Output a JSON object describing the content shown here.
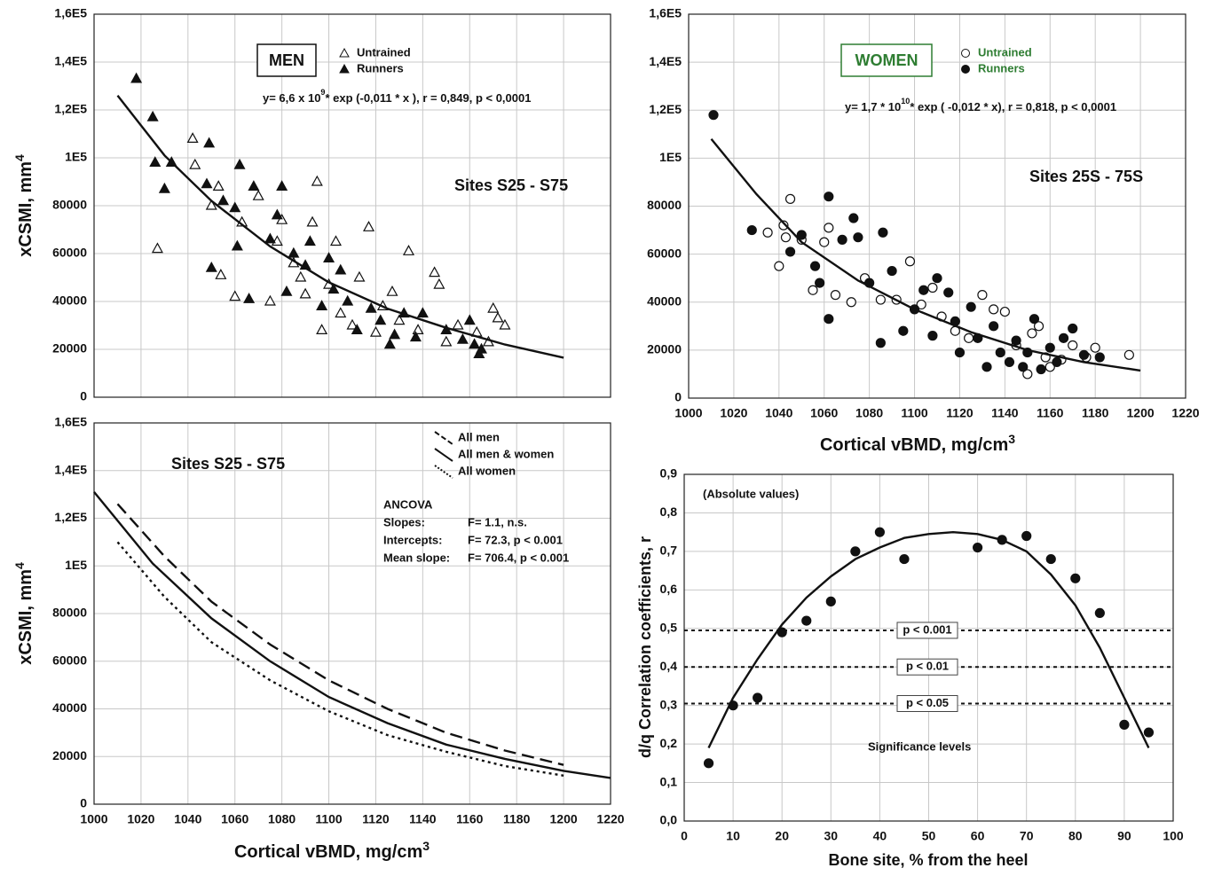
{
  "chart_data": [
    {
      "type": "scatter",
      "xlim": [
        1000,
        1220
      ],
      "xticks": [
        1000,
        1020,
        1040,
        1060,
        1080,
        1100,
        1120,
        1140,
        1160,
        1180,
        1200,
        1220
      ],
      "show_xtick_labels": false,
      "ylim": [
        0,
        160000
      ],
      "yticks": [
        0,
        20000,
        40000,
        60000,
        80000,
        {
          "value": 100000,
          "label": "1E5"
        },
        {
          "value": 120000,
          "label": "1,2E5"
        },
        {
          "value": 140000,
          "label": "1,4E5"
        },
        {
          "value": 160000,
          "label": "1,6E5"
        }
      ],
      "grid": true,
      "ylabel": "xCSMI, mm",
      "ylabel_sup": "4",
      "box_title": "MEN",
      "box_color": "#111111",
      "equation": [
        "y= 6,6 x 10",
        "9",
        "* exp  (-0,011 * x ), r = 0,849, p < 0,0001"
      ],
      "annotation": "Sites S25 - S75",
      "series": [
        {
          "name": "Untrained",
          "kind": "markers",
          "marker": "triangle-open",
          "color": "#111111",
          "x": [
            1027,
            1042,
            1043,
            1050,
            1053,
            1054,
            1060,
            1063,
            1070,
            1075,
            1078,
            1080,
            1085,
            1088,
            1090,
            1093,
            1095,
            1097,
            1100,
            1103,
            1105,
            1110,
            1113,
            1117,
            1120,
            1123,
            1127,
            1130,
            1134,
            1138,
            1145,
            1147,
            1150,
            1155,
            1163,
            1168,
            1170,
            1172,
            1175
          ],
          "values": [
            62000,
            108000,
            97000,
            80000,
            88000,
            51000,
            42000,
            73000,
            84000,
            40000,
            65000,
            74000,
            56000,
            50000,
            43000,
            73000,
            90000,
            28000,
            47000,
            65000,
            35000,
            30000,
            50000,
            71000,
            27000,
            38000,
            44000,
            32000,
            61000,
            28000,
            52000,
            47000,
            23000,
            30000,
            27000,
            23000,
            37000,
            33000,
            30000
          ]
        },
        {
          "name": "Runners",
          "kind": "markers",
          "marker": "triangle-filled",
          "color": "#111111",
          "x": [
            1018,
            1025,
            1026,
            1030,
            1033,
            1048,
            1049,
            1050,
            1055,
            1060,
            1061,
            1062,
            1066,
            1068,
            1075,
            1078,
            1080,
            1082,
            1085,
            1090,
            1092,
            1097,
            1100,
            1102,
            1105,
            1108,
            1112,
            1118,
            1122,
            1126,
            1128,
            1132,
            1137,
            1140,
            1150,
            1157,
            1160,
            1162,
            1164,
            1165
          ],
          "values": [
            133000,
            117000,
            98000,
            87000,
            98000,
            89000,
            106000,
            54000,
            82000,
            79000,
            63000,
            97000,
            41000,
            88000,
            66000,
            76000,
            88000,
            44000,
            60000,
            55000,
            65000,
            38000,
            58000,
            45000,
            53000,
            40000,
            28000,
            37000,
            32000,
            22000,
            26000,
            35000,
            25000,
            35000,
            28000,
            24000,
            32000,
            22000,
            18000,
            20000
          ]
        },
        {
          "kind": "line",
          "dash": "solid",
          "color": "#111111",
          "x": [
            1010,
            1030,
            1050,
            1075,
            1100,
            1125,
            1150,
            1175,
            1200
          ],
          "values": [
            126000,
            101000,
            82000,
            63000,
            48000,
            37000,
            29000,
            22000,
            16500
          ]
        }
      ]
    },
    {
      "type": "scatter",
      "xlim": [
        1000,
        1220
      ],
      "xticks": [
        1000,
        1020,
        1040,
        1060,
        1080,
        1100,
        1120,
        1140,
        1160,
        1180,
        1200,
        1220
      ],
      "show_xtick_labels": true,
      "ylim": [
        0,
        160000
      ],
      "yticks": [
        0,
        20000,
        40000,
        60000,
        80000,
        {
          "value": 100000,
          "label": "1E5"
        },
        {
          "value": 120000,
          "label": "1,2E5"
        },
        {
          "value": 140000,
          "label": "1,4E5"
        },
        {
          "value": 160000,
          "label": "1,6E5"
        }
      ],
      "grid": true,
      "xlabel": "Cortical vBMD, mg/cm",
      "xlabel_sup": "3",
      "box_title": "WOMEN",
      "box_color": "#2e7d32",
      "equation": [
        "y= 1,7 * 10",
        "10",
        "* exp ( -0,012 * x), r = 0,818, p < 0,0001"
      ],
      "annotation": "Sites 25S - 75S",
      "series": [
        {
          "name": "Untrained",
          "kind": "markers",
          "marker": "circle-open",
          "color": "#111111",
          "label_color": "#2e7d32",
          "x": [
            1035,
            1040,
            1042,
            1043,
            1045,
            1050,
            1055,
            1060,
            1062,
            1065,
            1072,
            1078,
            1085,
            1092,
            1098,
            1103,
            1108,
            1112,
            1118,
            1124,
            1130,
            1135,
            1140,
            1145,
            1150,
            1152,
            1155,
            1158,
            1160,
            1165,
            1170,
            1176,
            1180,
            1195
          ],
          "values": [
            69000,
            55000,
            72000,
            67000,
            83000,
            66000,
            45000,
            65000,
            71000,
            43000,
            40000,
            50000,
            41000,
            41000,
            57000,
            39000,
            46000,
            34000,
            28000,
            25000,
            43000,
            37000,
            36000,
            22000,
            10000,
            27000,
            30000,
            17000,
            13000,
            16000,
            22000,
            17000,
            21000,
            18000
          ]
        },
        {
          "name": "Runners",
          "kind": "markers",
          "marker": "circle-filled",
          "color": "#111111",
          "label_color": "#2e7d32",
          "x": [
            1011,
            1028,
            1045,
            1050,
            1056,
            1058,
            1062,
            1062,
            1068,
            1073,
            1075,
            1080,
            1085,
            1086,
            1090,
            1095,
            1100,
            1104,
            1108,
            1110,
            1115,
            1118,
            1120,
            1125,
            1128,
            1132,
            1135,
            1138,
            1142,
            1145,
            1148,
            1150,
            1153,
            1156,
            1160,
            1163,
            1166,
            1170,
            1175,
            1182
          ],
          "values": [
            118000,
            70000,
            61000,
            68000,
            55000,
            48000,
            84000,
            33000,
            66000,
            75000,
            67000,
            48000,
            23000,
            69000,
            53000,
            28000,
            37000,
            45000,
            26000,
            50000,
            44000,
            32000,
            19000,
            38000,
            25000,
            13000,
            30000,
            19000,
            15000,
            24000,
            13000,
            19000,
            33000,
            12000,
            21000,
            15000,
            25000,
            29000,
            18000,
            17000
          ]
        },
        {
          "kind": "line",
          "dash": "solid",
          "color": "#111111",
          "x": [
            1010,
            1030,
            1050,
            1075,
            1100,
            1125,
            1150,
            1175,
            1200
          ],
          "values": [
            108000,
            85000,
            65000,
            49000,
            37000,
            27500,
            20000,
            15000,
            11500
          ]
        }
      ]
    },
    {
      "type": "scatter",
      "xlim": [
        1000,
        1220
      ],
      "xticks": [
        1000,
        1020,
        1040,
        1060,
        1080,
        1100,
        1120,
        1140,
        1160,
        1180,
        1200,
        1220
      ],
      "show_xtick_labels": true,
      "ylim": [
        0,
        160000
      ],
      "yticks": [
        0,
        20000,
        40000,
        60000,
        80000,
        {
          "value": 100000,
          "label": "1E5"
        },
        {
          "value": 120000,
          "label": "1,2E5"
        },
        {
          "value": 140000,
          "label": "1,4E5"
        },
        {
          "value": 160000,
          "label": "1,6E5"
        }
      ],
      "grid": true,
      "xlabel": "Cortical vBMD, mg/cm",
      "xlabel_sup": "3",
      "ylabel": "xCSMI, mm",
      "ylabel_sup": "4",
      "annotation": "Sites S25 - S75",
      "ancova": {
        "title": "ANCOVA",
        "rows": [
          [
            "Slopes:",
            "F=    1.1,  n.s."
          ],
          [
            "Intercepts:",
            "F=  72.3,  p < 0.001"
          ],
          [
            "Mean slope:",
            "F= 706.4,  p < 0.001"
          ]
        ]
      },
      "series": [
        {
          "name": "All men",
          "kind": "line",
          "dash": "dashed",
          "color": "#111111",
          "x": [
            1010,
            1030,
            1050,
            1075,
            1100,
            1125,
            1150,
            1175,
            1200
          ],
          "values": [
            126000,
            104000,
            85000,
            67000,
            52000,
            40000,
            30000,
            22500,
            16500
          ]
        },
        {
          "name": "All men & women",
          "kind": "line",
          "dash": "solid",
          "color": "#111111",
          "x": [
            1000,
            1025,
            1050,
            1075,
            1100,
            1125,
            1150,
            1175,
            1200,
            1220
          ],
          "values": [
            131000,
            101000,
            78000,
            60000,
            45000,
            34000,
            25000,
            19000,
            14000,
            11000
          ]
        },
        {
          "name": "All women",
          "kind": "line",
          "dash": "dotted",
          "color": "#111111",
          "x": [
            1010,
            1030,
            1050,
            1075,
            1100,
            1125,
            1150,
            1175,
            1200
          ],
          "values": [
            110000,
            87000,
            68000,
            52000,
            39000,
            29000,
            22000,
            16000,
            12000
          ]
        }
      ]
    },
    {
      "type": "scatter",
      "xlim": [
        0,
        100
      ],
      "xticks": [
        0,
        10,
        20,
        30,
        40,
        50,
        60,
        70,
        80,
        90,
        100
      ],
      "show_xtick_labels": true,
      "ylim": [
        0,
        0.9
      ],
      "yticks": [
        {
          "value": 0,
          "label": "0,0"
        },
        {
          "value": 0.1,
          "label": "0,1"
        },
        {
          "value": 0.2,
          "label": "0,2"
        },
        {
          "value": 0.3,
          "label": "0,3"
        },
        {
          "value": 0.4,
          "label": "0,4"
        },
        {
          "value": 0.5,
          "label": "0,5"
        },
        {
          "value": 0.6,
          "label": "0,6"
        },
        {
          "value": 0.7,
          "label": "0,7"
        },
        {
          "value": 0.8,
          "label": "0,8"
        },
        {
          "value": 0.9,
          "label": "0,9"
        }
      ],
      "grid": true,
      "xlabel": "Bone site, % from the heel",
      "ylabel": "d/q Correlation coefficients, r",
      "annotation": "(Absolute values)",
      "annotation2": "Significance levels",
      "hlines": [
        {
          "value": 0.495,
          "label": "p < 0.001"
        },
        {
          "value": 0.4,
          "label": "p < 0.01"
        },
        {
          "value": 0.305,
          "label": "p < 0.05"
        }
      ],
      "series": [
        {
          "kind": "markers",
          "marker": "circle-filled",
          "color": "#111111",
          "x": [
            5,
            10,
            15,
            20,
            25,
            30,
            35,
            40,
            45,
            60,
            65,
            70,
            75,
            80,
            85,
            90,
            95
          ],
          "values": [
            0.15,
            0.3,
            0.32,
            0.49,
            0.52,
            0.57,
            0.7,
            0.75,
            0.68,
            0.71,
            0.73,
            0.74,
            0.68,
            0.63,
            0.54,
            0.25,
            0.23
          ]
        },
        {
          "kind": "line",
          "dash": "solid",
          "color": "#111111",
          "x": [
            5,
            10,
            15,
            20,
            25,
            30,
            35,
            40,
            45,
            50,
            55,
            60,
            65,
            70,
            75,
            80,
            85,
            90,
            95
          ],
          "values": [
            0.19,
            0.32,
            0.42,
            0.51,
            0.58,
            0.635,
            0.68,
            0.71,
            0.735,
            0.745,
            0.75,
            0.745,
            0.73,
            0.7,
            0.64,
            0.56,
            0.45,
            0.32,
            0.19
          ]
        }
      ]
    }
  ]
}
